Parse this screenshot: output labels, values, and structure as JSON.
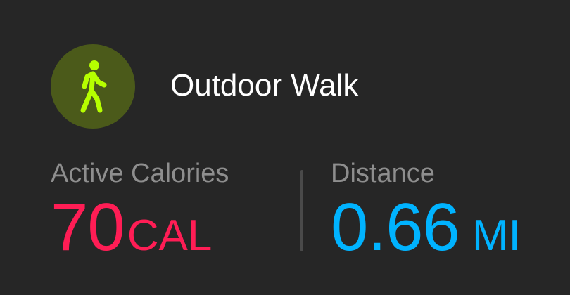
{
  "workout": {
    "title": "Outdoor Walk",
    "icon": "walking-figure-icon",
    "icon_color": "#b6ff00",
    "icon_background": "#4b5a1a"
  },
  "metrics": {
    "calories": {
      "label": "Active Calories",
      "value": "70",
      "unit": "CAL",
      "color": "#ff1d55"
    },
    "distance": {
      "label": "Distance",
      "value": "0.66",
      "unit": "MI",
      "color": "#00b3ff"
    }
  },
  "theme": {
    "background": "#262626",
    "label_color": "#8e8e8e",
    "divider_color": "#4a4a4a"
  }
}
